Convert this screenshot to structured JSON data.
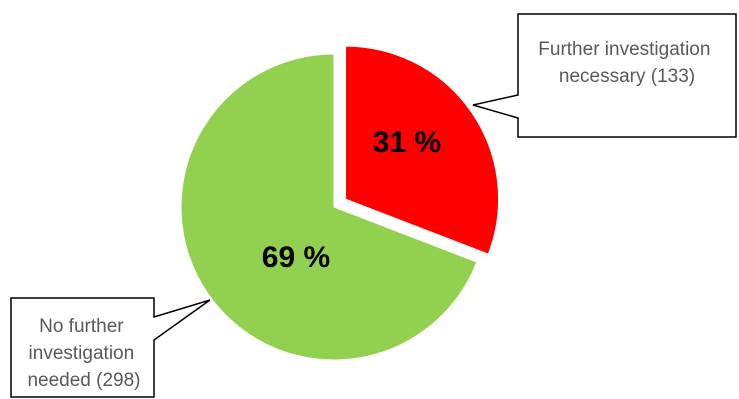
{
  "chart_data": {
    "type": "pie",
    "title": "",
    "slices": [
      {
        "percent_label": "31 %",
        "value": 133,
        "color": "#ff0000",
        "callout_lines": [
          "Further investigation",
          "necessary (133)"
        ],
        "exploded": true
      },
      {
        "percent_label": "69 %",
        "value": 298,
        "color": "#92d050",
        "callout_lines": [
          "No further",
          "investigation",
          "needed (298)"
        ],
        "exploded": false
      }
    ],
    "legend": "none"
  }
}
